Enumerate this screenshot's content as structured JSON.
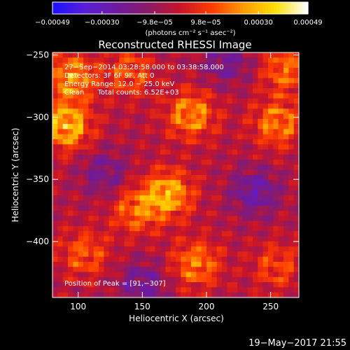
{
  "chart_data": {
    "type": "heatmap",
    "title": "Reconstructed RHESSI Image",
    "xlabel": "Heliocentric X (arcsec)",
    "ylabel": "Heliocentric Y (arcsec)",
    "xlim": [
      80,
      272
    ],
    "ylim": [
      -445,
      -248
    ],
    "x_ticks": [
      100,
      150,
      200,
      250
    ],
    "x_tick_labels": [
      "100",
      "150",
      "200",
      "250"
    ],
    "y_ticks": [
      -250,
      -300,
      -350,
      -400
    ],
    "y_tick_labels": [
      "−250",
      "−300",
      "−350",
      "−400"
    ],
    "colorbar": {
      "range": [
        -0.00049,
        0.00049
      ],
      "ticks": [
        -0.00049,
        -0.0003,
        -9.8e-05,
        9.8e-05,
        0.0003,
        0.00049
      ],
      "tick_labels": [
        "−0.00049",
        "−0.00030",
        "−9.8e−05",
        "9.8e−05",
        "0.00030",
        "0.00049"
      ],
      "units_label": "(photons cm⁻² s⁻¹ asec⁻²)",
      "colors": [
        "#1e12ff",
        "#5a1ed8",
        "#6e1a9e",
        "#8c1a66",
        "#c8142a",
        "#ff3c00",
        "#ff9a00",
        "#ffe000",
        "#ffffff"
      ]
    },
    "annotations": [
      "27−Sep−2014 03:28:58.000 to 03:38:58.000",
      "Detectors: 3F 6F 9F, Att 0",
      "Energy Range: 12.0 − 25.0 keV",
      "Clean      Total counts: 6.52E+03"
    ],
    "peak_label": "Position of Peak = [91,−307]",
    "peak": [
      91,
      -307
    ],
    "grid_resolution": 48,
    "hotspots": [
      {
        "x": 91,
        "y": -307,
        "value": 0.00049
      },
      {
        "x": 95,
        "y": -268,
        "value": 0.0004
      },
      {
        "x": 170,
        "y": -362,
        "value": 0.00045
      },
      {
        "x": 145,
        "y": -375,
        "value": 0.0003
      },
      {
        "x": 188,
        "y": -298,
        "value": 0.00038
      },
      {
        "x": 255,
        "y": -305,
        "value": 0.00034
      },
      {
        "x": 262,
        "y": -262,
        "value": 0.0003
      },
      {
        "x": 192,
        "y": -418,
        "value": 0.00034
      },
      {
        "x": 105,
        "y": -410,
        "value": 0.00026
      },
      {
        "x": 255,
        "y": -420,
        "value": 0.00022
      },
      {
        "x": 140,
        "y": -265,
        "value": 0.00026
      }
    ],
    "coldspots": [
      {
        "x": 238,
        "y": -360,
        "value": -0.0003
      },
      {
        "x": 120,
        "y": -345,
        "value": -0.00022
      },
      {
        "x": 215,
        "y": -255,
        "value": -0.00024
      },
      {
        "x": 150,
        "y": -435,
        "value": -0.00026
      }
    ],
    "grid": false
  },
  "footer": {
    "timestamp": "19−May−2017 21:55"
  }
}
